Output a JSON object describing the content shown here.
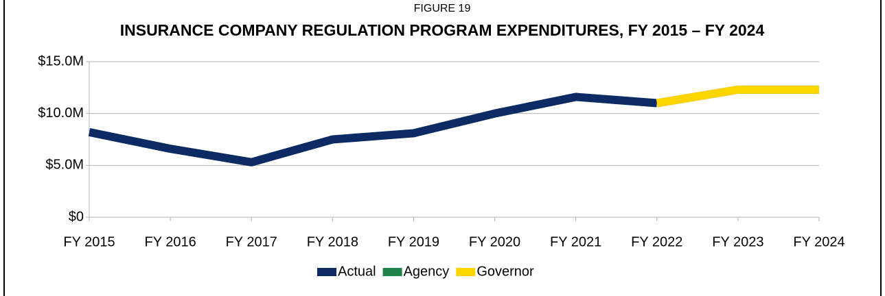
{
  "chart_data": {
    "type": "line",
    "supertitle": "FIGURE 19",
    "title": "INSURANCE COMPANY REGULATION PROGRAM EXPENDITURES, FY 2015 – FY 2024",
    "categories": [
      "FY 2015",
      "FY 2016",
      "FY 2017",
      "FY 2018",
      "FY 2019",
      "FY 2020",
      "FY 2021",
      "FY 2022",
      "FY 2023",
      "FY 2024"
    ],
    "series": [
      {
        "name": "Actual",
        "color": "#0c2a63",
        "values": [
          8200000,
          6600000,
          5300000,
          7500000,
          8100000,
          10000000,
          11600000,
          11000000,
          null,
          null
        ]
      },
      {
        "name": "Agency",
        "color": "#1e8449",
        "values": [
          null,
          null,
          null,
          null,
          null,
          null,
          null,
          11000000,
          12300000,
          12300000
        ]
      },
      {
        "name": "Governor",
        "color": "#ffd500",
        "values": [
          null,
          null,
          null,
          null,
          null,
          null,
          null,
          11000000,
          12300000,
          12300000
        ]
      }
    ],
    "ylim": [
      0,
      15000000
    ],
    "yticks": [
      {
        "value": 0,
        "label": "$0"
      },
      {
        "value": 5000000,
        "label": "$5.0M"
      },
      {
        "value": 10000000,
        "label": "$10.0M"
      },
      {
        "value": 15000000,
        "label": "$15.0M"
      }
    ],
    "grid": true,
    "legend": "bottom"
  }
}
